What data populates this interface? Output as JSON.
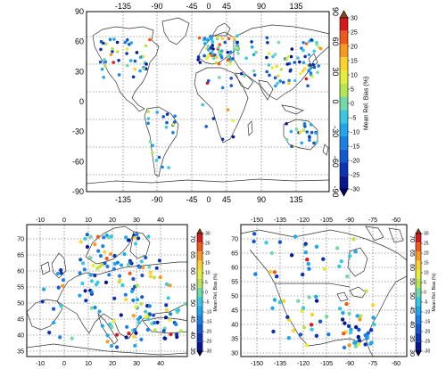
{
  "colorbar": {
    "label": "Mean Rel. Bias (%)",
    "ticks": [
      "30",
      "25",
      "20",
      "15",
      "10",
      "5",
      "0",
      "-5",
      "-10",
      "-15",
      "-20",
      "-25",
      "-30"
    ],
    "colors": [
      "#d7191c",
      "#ef5a1b",
      "#f89a1f",
      "#fdd22b",
      "#e6ef38",
      "#b5e551",
      "#73d9a6",
      "#38c8e2",
      "#1ea7ee",
      "#1880e6",
      "#1259cf",
      "#0b34b4",
      "#071790"
    ],
    "over_color": "#8b4513",
    "under_color": "#04006b"
  },
  "maps": [
    {
      "name": "world",
      "x_ticks": [
        "-135",
        "-90",
        "-45",
        "0",
        "45",
        "90",
        "135"
      ],
      "y_ticks": [
        "90",
        "60",
        "30",
        "0",
        "-30",
        "-60",
        "-90"
      ]
    },
    {
      "name": "europe",
      "x_ticks": [
        "-10",
        "0",
        "10",
        "20",
        "30",
        "40"
      ],
      "y_ticks": [
        "70",
        "65",
        "60",
        "55",
        "50",
        "45",
        "40",
        "35"
      ]
    },
    {
      "name": "north-america",
      "x_ticks": [
        "-150",
        "-135",
        "-120",
        "-105",
        "-90",
        "-75",
        "-60"
      ],
      "y_ticks": [
        "70",
        "65",
        "60",
        "55",
        "50",
        "45",
        "40",
        "35",
        "30"
      ]
    }
  ]
}
